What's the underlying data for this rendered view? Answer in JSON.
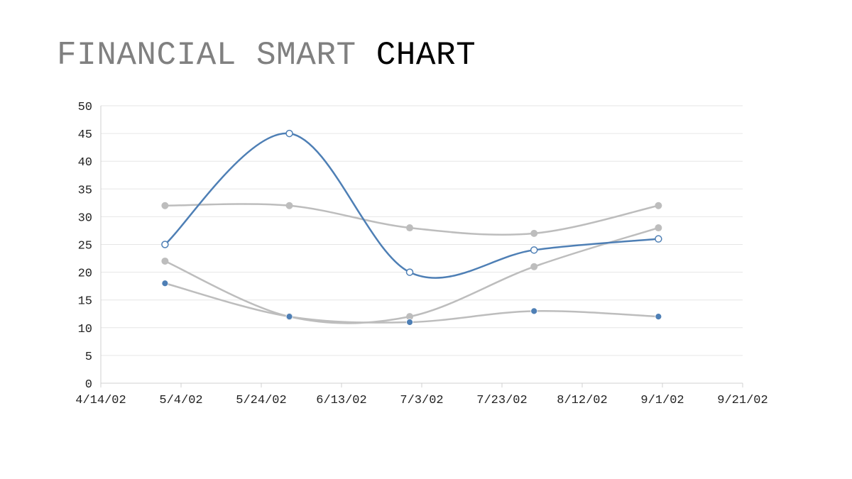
{
  "title": {
    "part1": "FINANCIAL SMART",
    "part2": "CHART"
  },
  "chart_data": {
    "type": "line",
    "title": "FINANCIAL SMART CHART",
    "xlabel": "",
    "ylabel": "",
    "x_ticks": [
      "4/14/02",
      "5/4/02",
      "5/24/02",
      "6/13/02",
      "7/3/02",
      "7/23/02",
      "8/12/02",
      "9/1/02",
      "9/21/02"
    ],
    "y_ticks": [
      0,
      5,
      10,
      15,
      20,
      25,
      30,
      35,
      40,
      45,
      50
    ],
    "ylim": [
      0,
      50
    ],
    "xlim": [
      "4/14/02",
      "9/21/02"
    ],
    "x": [
      "4/30/02",
      "5/31/02",
      "6/30/02",
      "7/31/02",
      "8/31/02"
    ],
    "grid": "horizontal",
    "series": [
      {
        "values": [
          32,
          32,
          28,
          27,
          32
        ],
        "color": "#bdbdbd",
        "marker": "filled"
      },
      {
        "values": [
          22,
          12,
          12,
          21,
          28
        ],
        "color": "#bdbdbd",
        "marker": "filled"
      },
      {
        "values": [
          18,
          12,
          11,
          13,
          12
        ],
        "color": "#bdbdbd",
        "marker": "filled-blue"
      },
      {
        "values": [
          25,
          45,
          20,
          24,
          26
        ],
        "color": "#4e7fb5",
        "marker": "hollow"
      }
    ],
    "colors": {
      "accent": "#4e7fb5",
      "muted": "#bdbdbd",
      "grid": "#e6e6e6",
      "axis": "#d0d0d0"
    }
  }
}
